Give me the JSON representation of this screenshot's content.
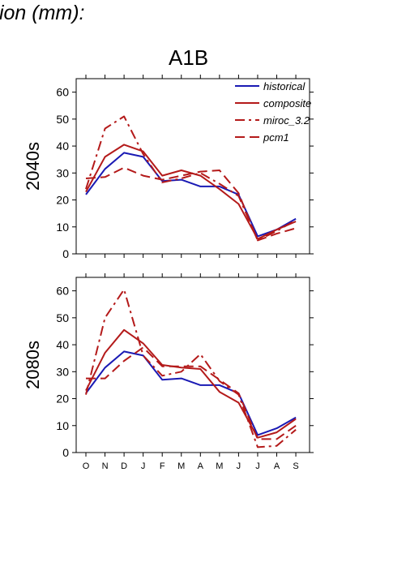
{
  "page_title": "tion (mm):",
  "panel_title": "A1B",
  "chart_data": [
    {
      "type": "line",
      "panel": "2040s",
      "ylabel": "2040s",
      "ylim": [
        0,
        65
      ],
      "yticks": [
        0,
        10,
        20,
        30,
        40,
        50,
        60
      ],
      "categories": [
        "O",
        "N",
        "D",
        "J",
        "F",
        "M",
        "A",
        "M",
        "J",
        "J",
        "A",
        "S"
      ],
      "show_xtick_labels": false,
      "legend_position": "top-right",
      "series": [
        {
          "name": "historical",
          "color": "#1a1ab4",
          "dash": "solid",
          "values": [
            22,
            31.5,
            37.5,
            36,
            27,
            27.5,
            25,
            25,
            22,
            6.5,
            9,
            13
          ]
        },
        {
          "name": "composite",
          "color": "#b41a1a",
          "dash": "solid",
          "values": [
            23,
            36,
            40.5,
            38,
            29,
            31,
            29,
            24,
            18.5,
            5.5,
            9,
            12
          ]
        },
        {
          "name": "miroc_3.2",
          "color": "#b41a1a",
          "dash": "dashdot",
          "values": [
            24,
            46.5,
            51,
            37,
            26.5,
            28,
            30,
            26,
            21.5,
            5,
            8.5,
            12.5
          ]
        },
        {
          "name": "pcm1",
          "color": "#b41a1a",
          "dash": "dash",
          "values": [
            28,
            28.5,
            32,
            29,
            27.5,
            29,
            30.5,
            31,
            22.5,
            5,
            7.5,
            9.5
          ]
        }
      ]
    },
    {
      "type": "line",
      "panel": "2080s",
      "ylabel": "2080s",
      "ylim": [
        0,
        65
      ],
      "yticks": [
        0,
        10,
        20,
        30,
        40,
        50,
        60
      ],
      "categories": [
        "O",
        "N",
        "D",
        "J",
        "F",
        "M",
        "A",
        "M",
        "J",
        "J",
        "A",
        "S"
      ],
      "show_xtick_labels": true,
      "series": [
        {
          "name": "historical",
          "color": "#1a1ab4",
          "dash": "solid",
          "values": [
            22,
            31.5,
            37.5,
            36,
            27,
            27.5,
            25,
            25,
            22,
            6.5,
            9,
            13
          ]
        },
        {
          "name": "composite",
          "color": "#b41a1a",
          "dash": "solid",
          "values": [
            23,
            37,
            45.5,
            40.5,
            32.5,
            31.5,
            31,
            22.5,
            18.5,
            5.5,
            7.5,
            12.5
          ]
        },
        {
          "name": "miroc_3.2",
          "color": "#b41a1a",
          "dash": "dashdot",
          "values": [
            21.5,
            50,
            60.5,
            36,
            28.5,
            30,
            36.5,
            26.5,
            21.5,
            2,
            2.5,
            8.5
          ]
        },
        {
          "name": "pcm1",
          "color": "#b41a1a",
          "dash": "dash",
          "values": [
            27.5,
            27.5,
            34,
            39,
            32,
            32,
            32,
            27,
            22,
            5,
            5,
            10
          ]
        }
      ]
    }
  ]
}
